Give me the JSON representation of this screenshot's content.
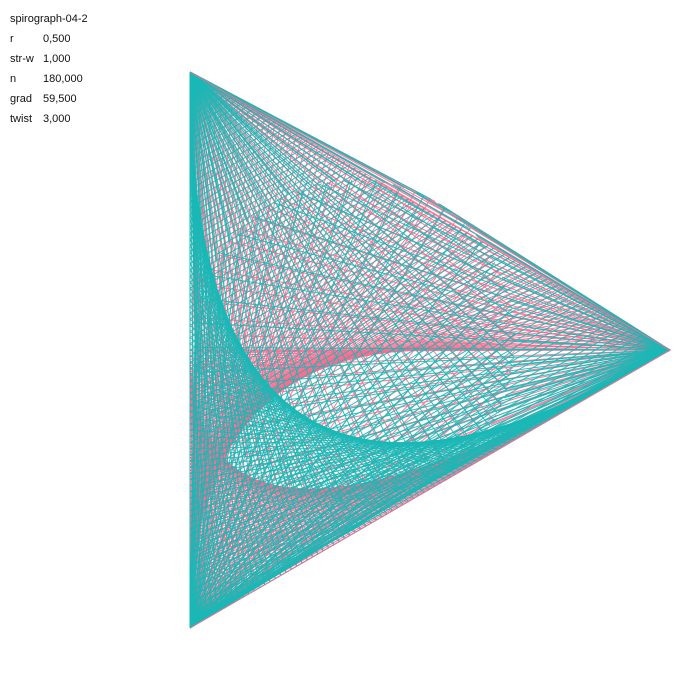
{
  "sketch_name": "spirograph-04-2",
  "params": [
    {
      "key": "r",
      "value": "0,500"
    },
    {
      "key": "str-w",
      "value": "1,000"
    },
    {
      "key": "n",
      "value": "180,000"
    },
    {
      "key": "grad",
      "value": "59,500"
    },
    {
      "key": "twist",
      "value": "3,000"
    }
  ],
  "colors": {
    "background": "#ffffff",
    "teal": "#1ab8b6",
    "pink": "#ff6b8e"
  }
}
